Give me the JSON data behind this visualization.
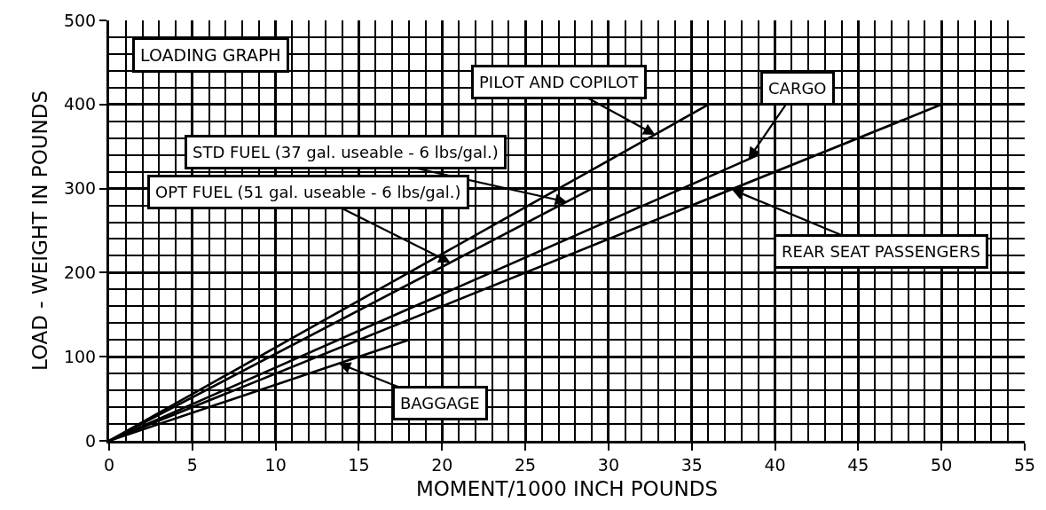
{
  "chart_data": {
    "type": "line",
    "title": "LOADING GRAPH",
    "xlabel": "MOMENT/1000 INCH POUNDS",
    "ylabel": "LOAD - WEIGHT IN POUNDS",
    "xlim": [
      0,
      55
    ],
    "xticks": [
      0,
      5,
      10,
      15,
      20,
      25,
      30,
      35,
      40,
      45,
      50,
      55
    ],
    "ylim": [
      0,
      500
    ],
    "yticks": [
      0,
      100,
      200,
      300,
      400,
      500
    ],
    "grid": true,
    "marker": "none",
    "line_style": "solid",
    "series": [
      {
        "color": "#000000",
        "x": [
          0,
          36
        ],
        "values": [
          0,
          400
        ]
      },
      {
        "color": "#000000",
        "x": [
          0,
          29
        ],
        "values": [
          0,
          300
        ]
      },
      {
        "color": "#000000",
        "x": [
          0,
          39
        ],
        "values": [
          0,
          340
        ]
      },
      {
        "color": "#000000",
        "x": [
          0,
          50
        ],
        "values": [
          0,
          400
        ]
      },
      {
        "color": "#000000",
        "x": [
          0,
          18
        ],
        "values": [
          0,
          120
        ]
      }
    ],
    "annotations": [
      {
        "text": "PILOT AND COPILOT",
        "x": 32.8,
        "y": 364
      },
      {
        "text": "STD FUEL (37 gal. useable - 6 lbs/gal.)",
        "x": 27.5,
        "y": 284
      },
      {
        "text": "OPT FUEL (51 gal. useable - 6 lbs/gal.)",
        "x": 20.5,
        "y": 212
      },
      {
        "text": "CARGO",
        "x": 38.4,
        "y": 335
      },
      {
        "text": "REAR SEAT PASSENGERS",
        "x": 37.4,
        "y": 299
      },
      {
        "text": "BAGGAGE",
        "x": 13.8,
        "y": 92
      }
    ]
  }
}
